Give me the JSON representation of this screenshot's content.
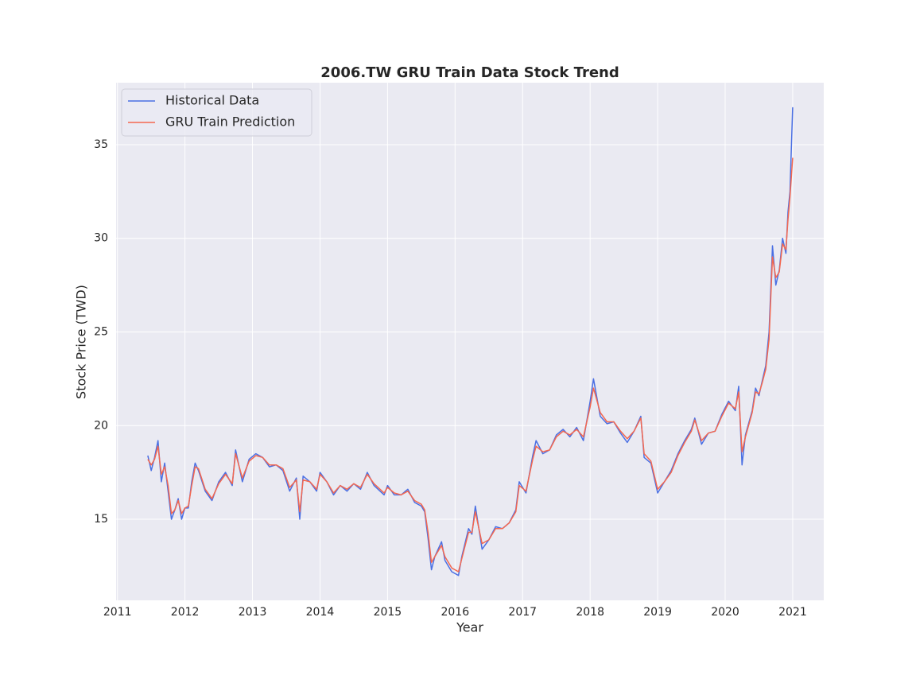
{
  "chart_data": {
    "type": "line",
    "title": "2006.TW  GRU Train Data Stock Trend",
    "x_label": "Year",
    "y_label": "Stock Price (TWD)",
    "x": [
      2011.45,
      2011.5,
      2011.55,
      2011.6,
      2011.65,
      2011.7,
      2011.75,
      2011.8,
      2011.85,
      2011.9,
      2011.95,
      2012.0,
      2012.05,
      2012.1,
      2012.15,
      2012.2,
      2012.3,
      2012.4,
      2012.5,
      2012.6,
      2012.7,
      2012.75,
      2012.85,
      2012.95,
      2013.05,
      2013.15,
      2013.25,
      2013.35,
      2013.45,
      2013.55,
      2013.65,
      2013.7,
      2013.75,
      2013.85,
      2013.95,
      2014.0,
      2014.1,
      2014.2,
      2014.3,
      2014.4,
      2014.5,
      2014.6,
      2014.7,
      2014.8,
      2014.95,
      2015.0,
      2015.1,
      2015.2,
      2015.3,
      2015.4,
      2015.5,
      2015.55,
      2015.6,
      2015.65,
      2015.7,
      2015.8,
      2015.85,
      2015.95,
      2016.05,
      2016.1,
      2016.2,
      2016.25,
      2016.3,
      2016.4,
      2016.5,
      2016.6,
      2016.7,
      2016.8,
      2016.9,
      2016.95,
      2017.05,
      2017.15,
      2017.2,
      2017.3,
      2017.4,
      2017.5,
      2017.6,
      2017.7,
      2017.8,
      2017.9,
      2018.0,
      2018.05,
      2018.15,
      2018.25,
      2018.35,
      2018.45,
      2018.55,
      2018.65,
      2018.75,
      2018.8,
      2018.9,
      2019.0,
      2019.1,
      2019.2,
      2019.3,
      2019.4,
      2019.5,
      2019.55,
      2019.65,
      2019.75,
      2019.85,
      2019.95,
      2020.05,
      2020.15,
      2020.2,
      2020.25,
      2020.3,
      2020.4,
      2020.45,
      2020.5,
      2020.55,
      2020.6,
      2020.65,
      2020.7,
      2020.75,
      2020.8,
      2020.85,
      2020.9,
      2020.93,
      2020.96,
      2021.0
    ],
    "series": [
      {
        "name": "Historical Data",
        "color": "#4a6fe3",
        "values": [
          18.4,
          17.6,
          18.3,
          19.2,
          17.0,
          18.0,
          16.5,
          15.0,
          15.5,
          16.1,
          15.0,
          15.6,
          15.6,
          17.0,
          18.0,
          17.6,
          16.5,
          16.0,
          17.0,
          17.5,
          16.8,
          18.7,
          17.0,
          18.2,
          18.5,
          18.3,
          17.8,
          17.9,
          17.6,
          16.5,
          17.2,
          15.0,
          17.3,
          17.0,
          16.5,
          17.5,
          17.0,
          16.3,
          16.8,
          16.5,
          16.9,
          16.6,
          17.5,
          16.8,
          16.3,
          16.8,
          16.3,
          16.3,
          16.6,
          15.9,
          15.7,
          15.4,
          14.0,
          12.3,
          13.0,
          13.8,
          12.8,
          12.2,
          12.0,
          13.0,
          14.5,
          14.2,
          15.7,
          13.4,
          13.9,
          14.6,
          14.5,
          14.8,
          15.5,
          17.0,
          16.4,
          18.4,
          19.2,
          18.5,
          18.7,
          19.5,
          19.8,
          19.4,
          19.9,
          19.2,
          21.3,
          22.5,
          20.5,
          20.1,
          20.2,
          19.6,
          19.1,
          19.7,
          20.5,
          18.3,
          18.0,
          16.4,
          17.0,
          17.6,
          18.5,
          19.2,
          19.8,
          20.4,
          19.0,
          19.6,
          19.7,
          20.6,
          21.3,
          20.8,
          22.1,
          17.9,
          19.5,
          20.8,
          22.0,
          21.6,
          22.4,
          23.2,
          25.0,
          29.6,
          27.5,
          28.3,
          30.0,
          29.2,
          31.4,
          32.5,
          37.0
        ]
      },
      {
        "name": "GRU Train Prediction",
        "color": "#f4674f",
        "values": [
          18.2,
          17.9,
          18.2,
          18.9,
          17.4,
          17.8,
          16.8,
          15.3,
          15.5,
          16.0,
          15.3,
          15.6,
          15.7,
          16.8,
          17.8,
          17.7,
          16.6,
          16.1,
          16.9,
          17.4,
          16.9,
          18.5,
          17.2,
          18.1,
          18.4,
          18.3,
          17.9,
          17.9,
          17.7,
          16.7,
          17.1,
          15.4,
          17.1,
          17.0,
          16.6,
          17.4,
          17.0,
          16.4,
          16.8,
          16.6,
          16.9,
          16.7,
          17.4,
          16.9,
          16.4,
          16.7,
          16.4,
          16.3,
          16.5,
          16.0,
          15.8,
          15.5,
          14.3,
          12.7,
          13.0,
          13.6,
          13.0,
          12.4,
          12.2,
          12.9,
          14.3,
          14.3,
          15.4,
          13.7,
          13.9,
          14.5,
          14.5,
          14.8,
          15.4,
          16.8,
          16.5,
          18.2,
          18.9,
          18.6,
          18.7,
          19.4,
          19.7,
          19.5,
          19.8,
          19.4,
          21.0,
          22.0,
          20.7,
          20.2,
          20.2,
          19.7,
          19.3,
          19.7,
          20.4,
          18.5,
          18.1,
          16.6,
          17.0,
          17.5,
          18.4,
          19.1,
          19.7,
          20.3,
          19.2,
          19.6,
          19.7,
          20.5,
          21.2,
          20.9,
          21.8,
          18.6,
          19.4,
          20.7,
          21.8,
          21.7,
          22.3,
          23.0,
          24.6,
          29.0,
          27.9,
          28.2,
          29.7,
          29.4,
          31.0,
          32.2,
          34.3
        ]
      }
    ],
    "xlim": [
      2010.98,
      2021.46
    ],
    "xticks": [
      2011,
      2012,
      2013,
      2014,
      2015,
      2016,
      2017,
      2018,
      2019,
      2020,
      2021
    ],
    "ylim": [
      10.67,
      38.31
    ],
    "yticks": [
      15,
      20,
      25,
      30,
      35
    ],
    "grid": true,
    "legend": "upper left"
  }
}
